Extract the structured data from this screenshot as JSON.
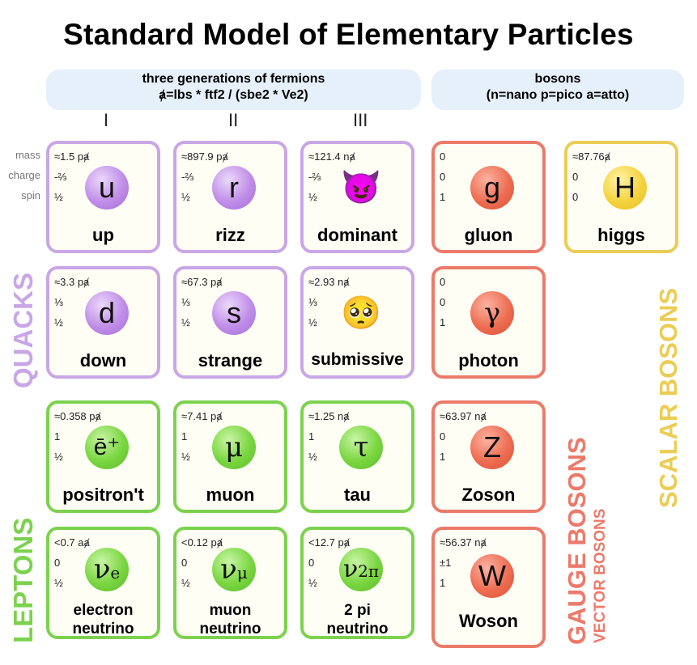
{
  "title": "Standard Model of Elementary Particles",
  "fermions_header": {
    "line1": "three generations of fermions",
    "line2": "ⱥ=lbs * ftf2 / (sbe2 * Ve2)"
  },
  "bosons_header": {
    "line1": "bosons",
    "line2": "(n=nano p=pico a=atto)"
  },
  "generations": [
    "I",
    "II",
    "III"
  ],
  "row_labels": {
    "mass": "mass",
    "charge": "charge",
    "spin": "spin"
  },
  "particles": {
    "up": {
      "mass": "≈1.5 pⱥ",
      "charge": "-⅔",
      "spin": "½",
      "symbol": "u",
      "name": "up"
    },
    "rizz": {
      "mass": "≈897.9 pⱥ",
      "charge": "-⅔",
      "spin": "½",
      "symbol": "r",
      "name": "rizz"
    },
    "dominant": {
      "mass": "≈121.4 nⱥ",
      "charge": "-⅔",
      "spin": "½",
      "symbol": "😈",
      "name": "dominant"
    },
    "gluon": {
      "mass": "0",
      "charge": "0",
      "spin": "1",
      "symbol": "g",
      "name": "gluon"
    },
    "higgs": {
      "mass": "≈87.76ⱥ",
      "charge": "0",
      "spin": "0",
      "symbol": "H",
      "name": "higgs"
    },
    "down": {
      "mass": "≈3.3 pⱥ",
      "charge": "⅓",
      "spin": "½",
      "symbol": "d",
      "name": "down"
    },
    "strange": {
      "mass": "≈67.3 pⱥ",
      "charge": "⅓",
      "spin": "½",
      "symbol": "s",
      "name": "strange"
    },
    "submissive": {
      "mass": "≈2.93 nⱥ",
      "charge": "⅓",
      "spin": "½",
      "symbol": "🥺",
      "name": "submissive"
    },
    "photon": {
      "mass": "0",
      "charge": "0",
      "spin": "1",
      "symbol": "γ",
      "name": "photon"
    },
    "positront": {
      "mass": "≈0.358 pⱥ",
      "charge": "1",
      "spin": "½",
      "symbol": "ē⁺",
      "name": "positron't"
    },
    "muon": {
      "mass": "≈7.41 pⱥ",
      "charge": "1",
      "spin": "½",
      "symbol": "μ",
      "name": "muon"
    },
    "tau": {
      "mass": "≈1.25 nⱥ",
      "charge": "1",
      "spin": "½",
      "symbol": "τ",
      "name": "tau"
    },
    "zoson": {
      "mass": "≈63.97 nⱥ",
      "charge": "0",
      "spin": "1",
      "symbol": "Z",
      "name": "Zoson"
    },
    "e_neutrino": {
      "mass": "<0.7 aⱥ",
      "charge": "0",
      "spin": "½",
      "symbol": "ν",
      "sub": "e",
      "name1": "electron",
      "name2": "neutrino"
    },
    "mu_neutrino": {
      "mass": "<0.12 pⱥ",
      "charge": "0",
      "spin": "½",
      "symbol": "ν",
      "sub": "μ",
      "name1": "muon",
      "name2": "neutrino"
    },
    "pi_neutrino": {
      "mass": "<12.7 pⱥ",
      "charge": "0",
      "spin": "½",
      "symbol": "ν",
      "sub": "2π",
      "name1": "2 pi",
      "name2": "neutrino"
    },
    "woson": {
      "mass": "≈56.37 nⱥ",
      "charge": "±1",
      "spin": "1",
      "symbol": "W",
      "name": "Woson"
    }
  },
  "side_labels": {
    "quacks": "QUACKS",
    "leptons": "LEPTONS",
    "gauge_bosons": "GAUGE BOSONS",
    "vector_bosons": "VECTOR BOSONS",
    "scalar_bosons": "SCALAR BOSONS"
  },
  "colors": {
    "quark": "#c9a6e6",
    "lepton": "#7cd24e",
    "gauge": "#ec7a6a",
    "scalar": "#ebcd55"
  }
}
